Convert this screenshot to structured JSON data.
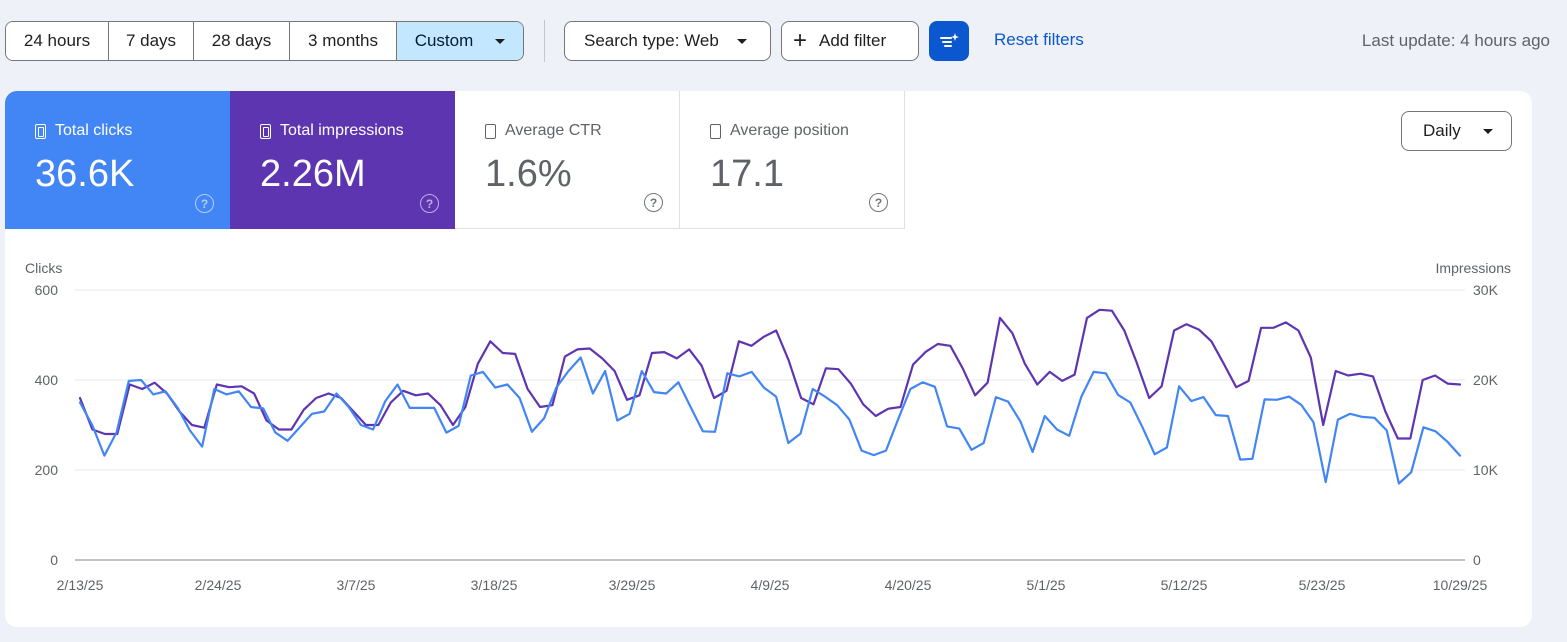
{
  "toolbar": {
    "ranges": [
      "24 hours",
      "7 days",
      "28 days",
      "3 months",
      "Custom"
    ],
    "active_range": "Custom",
    "search_type": "Search type: Web",
    "add_filter": "Add filter",
    "reset_filters": "Reset filters",
    "last_update": "Last update: 4 hours ago"
  },
  "metrics": {
    "clicks": {
      "label": "Total clicks",
      "value": "36.6K",
      "color": "#4285f4",
      "selected": true
    },
    "impressions": {
      "label": "Total impressions",
      "value": "2.26M",
      "color": "#5e35b1",
      "selected": true
    },
    "ctr": {
      "label": "Average CTR",
      "value": "1.6%",
      "selected": false
    },
    "position": {
      "label": "Average position",
      "value": "17.1",
      "selected": false
    }
  },
  "granularity": "Daily",
  "chart_data": {
    "type": "line",
    "ylabel_left": "Clicks",
    "ylabel_right": "Impressions",
    "y_left_ticks": [
      "0",
      "200",
      "400",
      "600"
    ],
    "y_right_ticks": [
      "0",
      "10K",
      "20K",
      "30K"
    ],
    "ylim_left": [
      0,
      600
    ],
    "ylim_right": [
      0,
      30000
    ],
    "x_ticks": [
      "2/13/25",
      "2/24/25",
      "3/7/25",
      "3/18/25",
      "3/29/25",
      "4/9/25",
      "4/20/25",
      "5/1/25",
      "5/12/25",
      "5/23/25",
      "10/29/25"
    ],
    "grid": true,
    "series": [
      {
        "name": "Clicks",
        "color": "#4285f4",
        "axis": "left",
        "values": [
          350,
          300,
          232,
          284,
          398,
          400,
          368,
          375,
          338,
          288,
          252,
          380,
          368,
          375,
          340,
          337,
          283,
          265,
          295,
          325,
          330,
          370,
          340,
          300,
          290,
          353,
          390,
          338,
          338,
          338,
          283,
          298,
          410,
          418,
          383,
          390,
          360,
          285,
          315,
          383,
          420,
          450,
          370,
          420,
          310,
          325,
          420,
          373,
          370,
          395,
          340,
          286,
          285,
          415,
          408,
          418,
          383,
          363,
          260,
          281,
          380,
          363,
          344,
          312,
          243,
          233,
          243,
          313,
          380,
          395,
          385,
          297,
          292,
          245,
          260,
          362,
          352,
          308,
          240,
          320,
          290,
          276,
          363,
          418,
          415,
          367,
          350,
          295,
          235,
          250,
          386,
          353,
          362,
          322,
          320,
          223,
          225,
          357,
          356,
          363,
          345,
          306,
          173,
          312,
          325,
          318,
          316,
          288,
          170,
          195,
          295,
          286,
          262,
          232
        ]
      },
      {
        "name": "Impressions",
        "color": "#5e35b1",
        "axis": "right",
        "values": [
          18000,
          14500,
          14000,
          14000,
          19500,
          19000,
          19700,
          18500,
          16500,
          15000,
          14700,
          19500,
          19200,
          19300,
          18500,
          15500,
          14500,
          14500,
          16700,
          18000,
          18500,
          18000,
          16500,
          15000,
          15000,
          17500,
          18800,
          18300,
          18500,
          17200,
          15000,
          17000,
          21800,
          24300,
          23000,
          22900,
          19000,
          17000,
          17200,
          22600,
          23400,
          23500,
          22400,
          21000,
          17800,
          18300,
          23000,
          23100,
          22400,
          23400,
          21600,
          18000,
          18800,
          24300,
          23800,
          24800,
          25500,
          22200,
          18000,
          17300,
          21300,
          21200,
          19600,
          17300,
          16000,
          16800,
          17000,
          21700,
          23100,
          24000,
          23800,
          21300,
          18300,
          19700,
          26900,
          25200,
          21800,
          19500,
          20900,
          19900,
          20600,
          26900,
          27800,
          27700,
          25500,
          21900,
          18000,
          19300,
          25500,
          26200,
          25600,
          24300,
          21800,
          19200,
          19900,
          25800,
          25800,
          26400,
          25500,
          22500,
          15000,
          21000,
          20500,
          20700,
          20400,
          16500,
          13500,
          13500,
          20000,
          20500,
          19600,
          19500
        ]
      }
    ]
  }
}
